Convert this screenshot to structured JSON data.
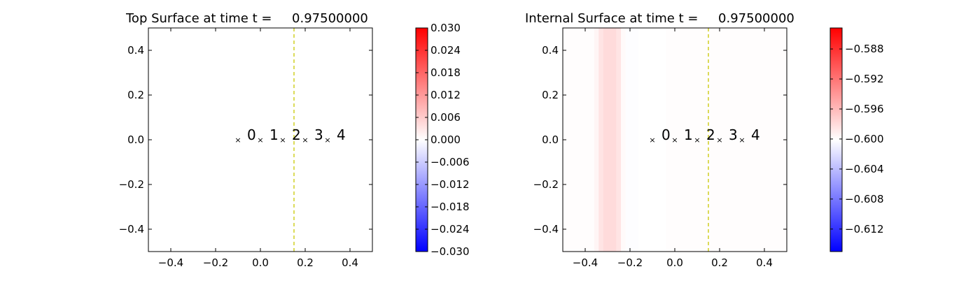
{
  "chart_data": [
    {
      "type": "heatmap",
      "title": "Top Surface at time t =     0.97500000",
      "xlim": [
        -0.5,
        0.5
      ],
      "ylim": [
        -0.5,
        0.5
      ],
      "xticks": [
        -0.4,
        -0.2,
        0.0,
        0.2,
        0.4
      ],
      "yticks": [
        -0.4,
        -0.2,
        0.0,
        0.2,
        0.4
      ],
      "xtick_labels": [
        "−0.4",
        "−0.2",
        "0.0",
        "0.2",
        "0.4"
      ],
      "ytick_labels": [
        "−0.4",
        "−0.2",
        "0.0",
        "0.2",
        "0.4"
      ],
      "grid": false,
      "colormap": "bwr",
      "colorbar": {
        "vmin": -0.03,
        "vmax": 0.03,
        "ticks": [
          0.03,
          0.024,
          0.018,
          0.012,
          0.006,
          0.0,
          -0.006,
          -0.012,
          -0.018,
          -0.024,
          -0.03
        ],
        "tick_labels": [
          "0.030",
          "0.024",
          "0.018",
          "0.012",
          "0.006",
          "0.000",
          "−0.006",
          "−0.012",
          "−0.018",
          "−0.024",
          "−0.030"
        ]
      },
      "field_bands": [],
      "markers": [
        {
          "x": -0.1,
          "y": 0.0,
          "label": "0"
        },
        {
          "x": 0.0,
          "y": 0.0,
          "label": "1"
        },
        {
          "x": 0.1,
          "y": 0.0,
          "label": "2"
        },
        {
          "x": 0.2,
          "y": 0.0,
          "label": "3"
        },
        {
          "x": 0.3,
          "y": 0.0,
          "label": "4"
        }
      ],
      "vline": {
        "x": 0.15,
        "color": "#c8c800",
        "style": "dashed"
      }
    },
    {
      "type": "heatmap",
      "title": "Internal Surface at time t =     0.97500000",
      "xlim": [
        -0.5,
        0.5
      ],
      "ylim": [
        -0.5,
        0.5
      ],
      "xticks": [
        -0.4,
        -0.2,
        0.0,
        0.2,
        0.4
      ],
      "yticks": [
        -0.4,
        -0.2,
        0.0,
        0.2,
        0.4
      ],
      "xtick_labels": [
        "−0.4",
        "−0.2",
        "0.0",
        "0.2",
        "0.4"
      ],
      "ytick_labels": [
        "−0.4",
        "−0.2",
        "0.0",
        "0.2",
        "0.4"
      ],
      "grid": false,
      "colormap": "bwr",
      "colorbar": {
        "vmin": -0.615,
        "vmax": -0.5852,
        "ticks": [
          -0.588,
          -0.592,
          -0.596,
          -0.6,
          -0.604,
          -0.608,
          -0.612
        ],
        "tick_labels": [
          "−0.588",
          "−0.592",
          "−0.596",
          "−0.600",
          "−0.604",
          "−0.608",
          "−0.612"
        ]
      },
      "field_bands": [
        {
          "x0": -0.5,
          "x1": -0.36,
          "value": -0.6
        },
        {
          "x0": -0.36,
          "x1": -0.34,
          "value": -0.5995
        },
        {
          "x0": -0.34,
          "x1": -0.32,
          "value": -0.5985
        },
        {
          "x0": -0.32,
          "x1": -0.26,
          "value": -0.598
        },
        {
          "x0": -0.26,
          "x1": -0.24,
          "value": -0.5985
        },
        {
          "x0": -0.24,
          "x1": -0.22,
          "value": -0.5998
        },
        {
          "x0": -0.22,
          "x1": -0.16,
          "value": -0.6002
        },
        {
          "x0": -0.16,
          "x1": -0.04,
          "value": -0.6001
        },
        {
          "x0": -0.04,
          "x1": 0.5,
          "value": -0.6
        }
      ],
      "markers": [
        {
          "x": -0.1,
          "y": 0.0,
          "label": "0"
        },
        {
          "x": 0.0,
          "y": 0.0,
          "label": "1"
        },
        {
          "x": 0.1,
          "y": 0.0,
          "label": "2"
        },
        {
          "x": 0.2,
          "y": 0.0,
          "label": "3"
        },
        {
          "x": 0.3,
          "y": 0.0,
          "label": "4"
        }
      ],
      "vline": {
        "x": 0.15,
        "color": "#c8c800",
        "style": "dashed"
      }
    }
  ]
}
